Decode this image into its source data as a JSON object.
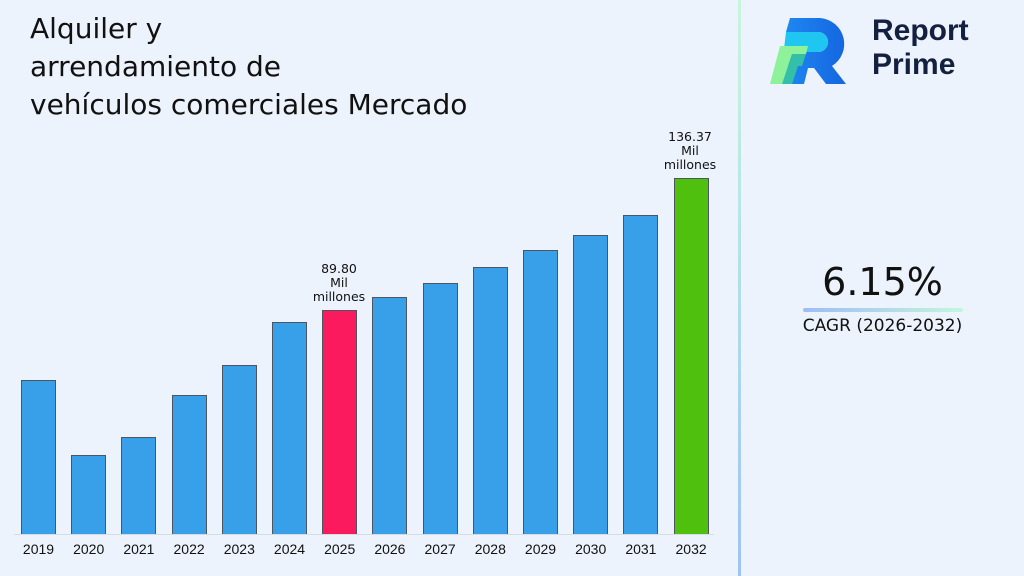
{
  "title": {
    "line1": "Alquiler y",
    "line2": "arrendamiento de",
    "line3": "vehículos comerciales Mercado"
  },
  "brand": {
    "line1": "Report",
    "line2": "Prime"
  },
  "cagr": {
    "value": "6.15%",
    "label": "CAGR (2026-2032)"
  },
  "colors": {
    "default_bar": "#38a0e8",
    "highlight_2025": "#fc1a5f",
    "highlight_2032": "#4fc00d",
    "background": "#edf3fd"
  },
  "annotations": {
    "a2025": {
      "value": "89.80",
      "unit1": "Mil",
      "unit2": "millones"
    },
    "a2032": {
      "value": "136.37",
      "unit1": "Mil",
      "unit2": "millones"
    }
  },
  "chart_data": {
    "type": "bar",
    "title": "Alquiler y arrendamiento de vehículos comerciales Mercado",
    "xlabel": "",
    "ylabel": "",
    "unit": "Mil millones",
    "categories": [
      "2019",
      "2020",
      "2021",
      "2022",
      "2023",
      "2024",
      "2025",
      "2026",
      "2027",
      "2028",
      "2029",
      "2030",
      "2031",
      "2032"
    ],
    "values": [
      65.1,
      38.6,
      45.0,
      59.8,
      70.4,
      85.6,
      89.8,
      94.4,
      99.3,
      105.0,
      111.0,
      116.3,
      123.3,
      136.37
    ],
    "labeled_points": {
      "2025": "89.80 Mil millones",
      "2032": "136.37 Mil millones"
    },
    "highlight": {
      "2025": "#fc1a5f",
      "2032": "#4fc00d"
    },
    "grid": false,
    "legend": "none",
    "cagr": "6.15% (2026-2032)"
  }
}
